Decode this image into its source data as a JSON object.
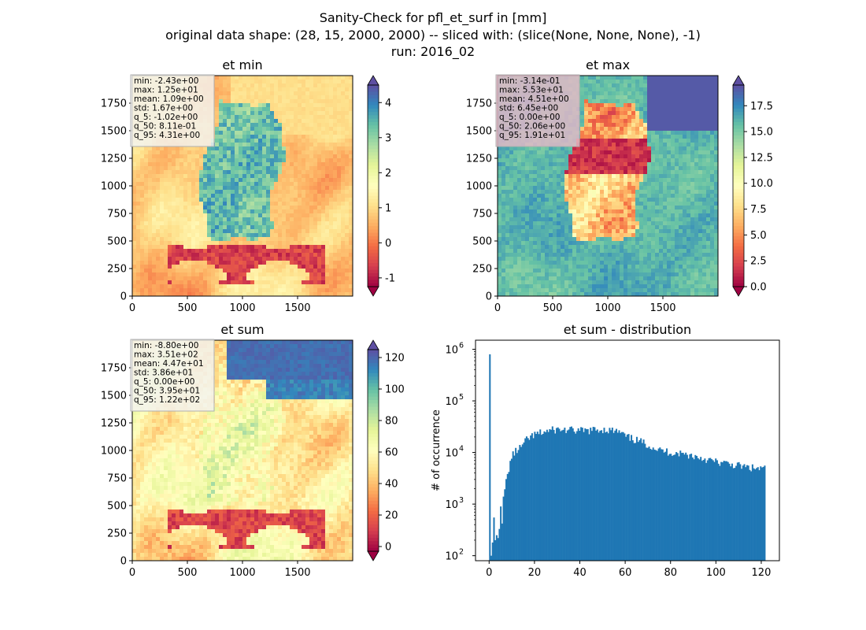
{
  "suptitle": {
    "line1": "Sanity-Check for pfl_et_surf in [mm]",
    "line2": "original data shape: (28, 15, 2000, 2000) -- sliced with: (slice(None, None, None), -1)",
    "line3": "run: 2016_02"
  },
  "colormap": "Spectral",
  "colormap_stops": [
    "#9e0142",
    "#d53e4f",
    "#f46d43",
    "#fdae61",
    "#fee08b",
    "#ffffbf",
    "#e6f598",
    "#abdda4",
    "#66c2a5",
    "#3288bd",
    "#5e4fa2"
  ],
  "chart_data": [
    {
      "type": "heatmap",
      "title": "et min",
      "x_ticks": [
        "0",
        "500",
        "1000",
        "1500"
      ],
      "y_ticks": [
        "0",
        "250",
        "500",
        "750",
        "1000",
        "1250",
        "1500",
        "1750"
      ],
      "xlim": [
        0,
        2000
      ],
      "ylim": [
        0,
        2000
      ],
      "colorbar": {
        "range": [
          -1.25,
          4.5
        ],
        "ticks": [
          "-1",
          "0",
          "1",
          "2",
          "3",
          "4"
        ],
        "tick_values": [
          -1,
          0,
          1,
          2,
          3,
          4
        ],
        "extend": "both"
      },
      "stats": [
        "min: -2.43e+00",
        "max: 1.25e+01",
        "mean: 1.09e+00",
        "std: 1.67e+00",
        "q_5: -1.02e+00",
        "q_50: 8.11e-01",
        "q_95: 4.31e+00"
      ]
    },
    {
      "type": "heatmap",
      "title": "et max",
      "x_ticks": [
        "0",
        "500",
        "1000",
        "1500"
      ],
      "y_ticks": [
        "0",
        "250",
        "500",
        "750",
        "1000",
        "1250",
        "1500",
        "1750"
      ],
      "xlim": [
        0,
        2000
      ],
      "ylim": [
        0,
        2000
      ],
      "colorbar": {
        "range": [
          0,
          19.5
        ],
        "ticks": [
          "0.0",
          "2.5",
          "5.0",
          "7.5",
          "10.0",
          "12.5",
          "15.0",
          "17.5"
        ],
        "tick_values": [
          0,
          2.5,
          5,
          7.5,
          10,
          12.5,
          15,
          17.5
        ],
        "extend": "both"
      },
      "stats": [
        "min: -3.14e-01",
        "max: 5.53e+01",
        "mean: 4.51e+00",
        "std: 6.45e+00",
        "q_5: 0.00e+00",
        "q_50: 2.06e+00",
        "q_95: 1.91e+01"
      ]
    },
    {
      "type": "heatmap",
      "title": "et sum",
      "x_ticks": [
        "0",
        "500",
        "1000",
        "1500"
      ],
      "y_ticks": [
        "0",
        "250",
        "500",
        "750",
        "1000",
        "1250",
        "1500",
        "1750"
      ],
      "xlim": [
        0,
        2000
      ],
      "ylim": [
        0,
        2000
      ],
      "colorbar": {
        "range": [
          -3,
          125
        ],
        "ticks": [
          "0",
          "20",
          "40",
          "60",
          "80",
          "100",
          "120"
        ],
        "tick_values": [
          0,
          20,
          40,
          60,
          80,
          100,
          120
        ],
        "extend": "both"
      },
      "stats": [
        "min: -8.80e+00",
        "max: 3.51e+02",
        "mean: 4.47e+01",
        "std: 3.86e+01",
        "q_5: 0.00e+00",
        "q_50: 3.95e+01",
        "q_95: 1.22e+02"
      ]
    },
    {
      "type": "bar",
      "title": "et sum - distribution",
      "ylabel": "# of occurrence",
      "xlabel": "",
      "yscale": "log",
      "ylim": [
        80,
        1500000
      ],
      "xlim": [
        -6,
        128
      ],
      "x_ticks": [
        0,
        20,
        40,
        60,
        80,
        100,
        120
      ],
      "y_ticks": [
        {
          "value": 100,
          "exp": "2"
        },
        {
          "value": 1000,
          "exp": "3"
        },
        {
          "value": 10000,
          "exp": "4"
        },
        {
          "value": 100000,
          "exp": "5"
        },
        {
          "value": 1000000,
          "exp": "6"
        }
      ],
      "bar_color": "#1f77b4",
      "bin_width": 0.6,
      "anchors": [
        [
          0,
          800000
        ],
        [
          0.6,
          100
        ],
        [
          1.2,
          180
        ],
        [
          1.8,
          550
        ],
        [
          2.4,
          200
        ],
        [
          3.0,
          250
        ],
        [
          3.6,
          220
        ],
        [
          4.2,
          330
        ],
        [
          4.8,
          900
        ],
        [
          5.4,
          500
        ],
        [
          6,
          1200
        ],
        [
          7,
          2500
        ],
        [
          8,
          4000
        ],
        [
          9,
          6500
        ],
        [
          10,
          9000
        ],
        [
          12,
          11000
        ],
        [
          14,
          13000
        ],
        [
          16,
          17000
        ],
        [
          18,
          20000
        ],
        [
          20,
          22000
        ],
        [
          25,
          26000
        ],
        [
          30,
          28000
        ],
        [
          35,
          27000
        ],
        [
          40,
          26000
        ],
        [
          45,
          27000
        ],
        [
          50,
          28000
        ],
        [
          55,
          26000
        ],
        [
          58,
          24000
        ],
        [
          60,
          20000
        ],
        [
          65,
          17000
        ],
        [
          70,
          14000
        ],
        [
          75,
          11000
        ],
        [
          80,
          10000
        ],
        [
          85,
          9500
        ],
        [
          90,
          8500
        ],
        [
          95,
          7500
        ],
        [
          100,
          6500
        ],
        [
          105,
          6000
        ],
        [
          110,
          5500
        ],
        [
          115,
          5000
        ],
        [
          121,
          4800
        ]
      ]
    }
  ]
}
